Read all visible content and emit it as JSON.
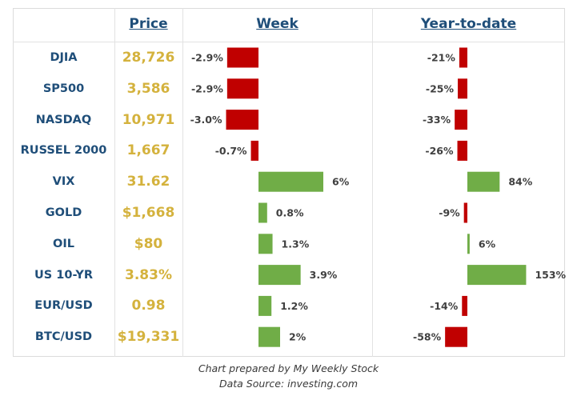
{
  "headers": {
    "price": "Price",
    "week": "Week",
    "ytd": "Year-to-date"
  },
  "colors": {
    "positive": "#70ad47",
    "negative": "#c00000",
    "name": "#1f4e79",
    "price": "#d4b23d",
    "label": "#404040"
  },
  "chart_data": {
    "type": "bar",
    "categories": [
      "DJIA",
      "SP500",
      "NASDAQ",
      "RUSSEL 2000",
      "VIX",
      "GOLD",
      "OIL",
      "US 10-YR",
      "EUR/USD",
      "BTC/USD"
    ],
    "prices": [
      "28,726",
      "3,586",
      "10,971",
      "1,667",
      "31.62",
      "$1,668",
      "$80",
      "3.83%",
      "0.98",
      "$19,331"
    ],
    "series": [
      {
        "name": "Week",
        "values": [
          -2.9,
          -2.9,
          -3.0,
          -0.7,
          6,
          0.8,
          1.3,
          3.9,
          1.2,
          2
        ],
        "labels": [
          "-2.9%",
          "-2.9%",
          "-3.0%",
          "-0.7%",
          "6%",
          "0.8%",
          "1.3%",
          "3.9%",
          "1.2%",
          "2%"
        ]
      },
      {
        "name": "Year-to-date",
        "values": [
          -21,
          -25,
          -33,
          -26,
          84,
          -9,
          6,
          153,
          -14,
          -58
        ],
        "labels": [
          "-21%",
          "-25%",
          "-33%",
          "-26%",
          "84%",
          "-9%",
          "6%",
          "153%",
          "-14%",
          "-58%"
        ]
      }
    ]
  },
  "footer": {
    "line1": "Chart prepared by My Weekly Stock",
    "line2": "Data Source: investing.com"
  }
}
